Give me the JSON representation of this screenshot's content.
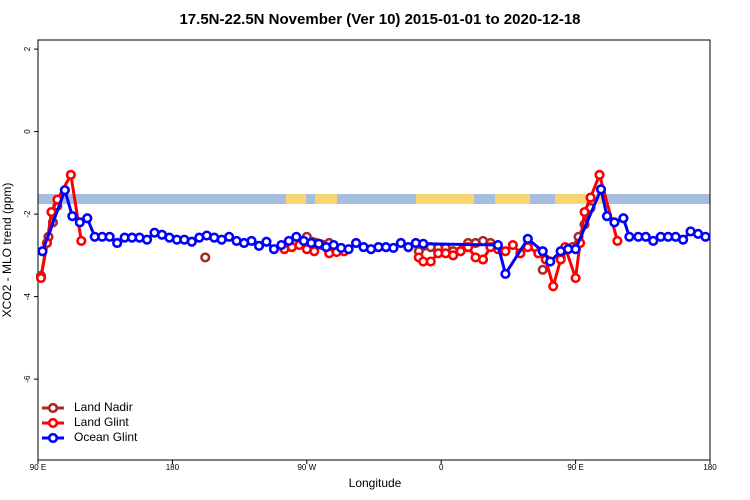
{
  "chart_data": {
    "type": "line",
    "title": "17.5N-22.5N November (Ver 10)   2015-01-01 to 2020-12-18",
    "x_label": "Longitude",
    "y_label": "XCO2 - MLO trend (ppm)",
    "xlim": [
      90,
      540
    ],
    "ylim": [
      -7.96,
      2.22
    ],
    "xticks": [
      {
        "value": 90,
        "label": "90 E"
      },
      180,
      {
        "value": 270,
        "label": "90 W"
      },
      {
        "value": 360,
        "label": "0"
      },
      {
        "value": 450,
        "label": "90 E"
      },
      {
        "value": 540,
        "label": "180"
      }
    ],
    "yticks": [
      -6,
      -4,
      -2,
      0,
      2
    ],
    "legend": "bottom-left",
    "series": [
      {
        "name": "Land Nadir",
        "color": "#a52a2a",
        "x": [
          92,
          97,
          100,
          103,
          150,
          202,
          240,
          270,
          285,
          320,
          345,
          353,
          358,
          363,
          368,
          378,
          383,
          388,
          393,
          410,
          428,
          435,
          440,
          448,
          452,
          456,
          460
        ],
        "values": [
          -3.5,
          -2.55,
          -2.2,
          -1.8,
          null,
          -3.05,
          null,
          -2.55,
          -2.7,
          null,
          -2.9,
          -2.8,
          -2.82,
          -2.82,
          -2.9,
          -2.7,
          -2.7,
          -2.65,
          -2.7,
          null,
          -3.35,
          null,
          -3.05,
          -2.8,
          -2.55,
          -2.25,
          -1.85
        ]
      },
      {
        "name": "Land Glint",
        "color": "#ff0000",
        "x": [
          92,
          96,
          99,
          103,
          112,
          119,
          190,
          255,
          260,
          265,
          270,
          275,
          280,
          285,
          290,
          295,
          320,
          345,
          348,
          353,
          358,
          363,
          368,
          373,
          378,
          383,
          388,
          393,
          398,
          403,
          408,
          413,
          418,
          425,
          430,
          435,
          440,
          443,
          450,
          453,
          456,
          460,
          466,
          478
        ],
        "values": [
          -3.55,
          -2.7,
          -1.95,
          -1.65,
          -1.05,
          -2.65,
          null,
          -2.85,
          -2.8,
          -2.75,
          -2.85,
          -2.9,
          -2.75,
          -2.95,
          -2.92,
          -2.9,
          null,
          -3.05,
          -3.15,
          -3.15,
          -2.95,
          -2.95,
          -3.0,
          -2.9,
          -2.8,
          -3.05,
          -3.1,
          -2.8,
          -2.85,
          -2.9,
          -2.75,
          -2.95,
          -2.8,
          -2.95,
          -3.1,
          -3.75,
          -3.1,
          -2.8,
          -3.55,
          -2.7,
          -1.95,
          -1.6,
          -1.05,
          -2.65
        ]
      },
      {
        "name": "Ocean Glint",
        "color": "#0000ff",
        "x": [
          93,
          108,
          113,
          118,
          123,
          128,
          133,
          138,
          143,
          148,
          153,
          158,
          163,
          168,
          173,
          178,
          183,
          188,
          193,
          198,
          203,
          208,
          213,
          218,
          223,
          228,
          233,
          238,
          243,
          248,
          253,
          258,
          263,
          268,
          273,
          278,
          283,
          288,
          293,
          298,
          303,
          308,
          313,
          318,
          323,
          328,
          333,
          338,
          343,
          348,
          398,
          403,
          418,
          428,
          433,
          440,
          445,
          450,
          467,
          471,
          476,
          482,
          486,
          492,
          497,
          502,
          507,
          512,
          517,
          522,
          527,
          532,
          537
        ],
        "values": [
          -2.9,
          -1.42,
          -2.05,
          -2.2,
          -2.1,
          -2.55,
          -2.55,
          -2.55,
          -2.7,
          -2.57,
          -2.57,
          -2.57,
          -2.62,
          -2.45,
          -2.5,
          -2.57,
          -2.62,
          -2.62,
          -2.67,
          -2.57,
          -2.52,
          -2.57,
          -2.62,
          -2.55,
          -2.65,
          -2.7,
          -2.65,
          -2.77,
          -2.67,
          -2.85,
          -2.75,
          -2.65,
          -2.55,
          -2.65,
          -2.7,
          -2.72,
          -2.8,
          -2.75,
          -2.82,
          -2.85,
          -2.7,
          -2.8,
          -2.85,
          -2.8,
          -2.8,
          -2.82,
          -2.7,
          -2.8,
          -2.7,
          -2.72,
          -2.75,
          -3.45,
          -2.6,
          -2.9,
          -3.15,
          -2.9,
          -2.85,
          -2.85,
          -1.4,
          -2.05,
          -2.2,
          -2.1,
          -2.55,
          -2.55,
          -2.55,
          -2.65,
          -2.55,
          -2.55,
          -2.55,
          -2.62,
          -2.42,
          -2.48,
          -2.55
        ]
      }
    ]
  }
}
